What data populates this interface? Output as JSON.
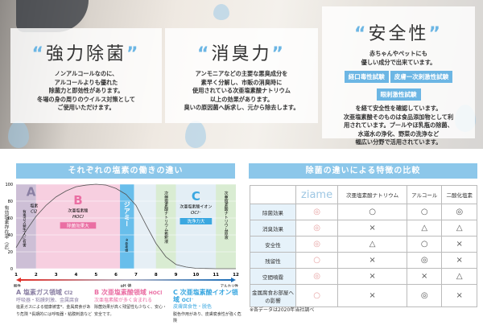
{
  "cards": [
    {
      "title": "強力除菌",
      "lines": [
        "ノンアルコールなのに、",
        "アルコールよりも優れた",
        "除菌力と即効性があります。",
        "冬場の身の周りのウイルス対策として",
        "ご使用いただけます。"
      ]
    },
    {
      "title": "消臭力",
      "lines": [
        "アンモニアなどの主要な悪臭成分を",
        "素早く分解し、市販の消臭時に",
        "使用されている次亜塩素酸ナトリウム",
        "以上の効果があります。",
        "臭いの原因菌へ訴求し、元から除去します。"
      ]
    },
    {
      "title": "安全性",
      "intro": [
        "赤ちゃんやペットにも",
        "優しい成分で出来ています。"
      ],
      "badges": [
        "経口毒性試験",
        "皮膚一次刺激性試験",
        "眼刺激性試験"
      ],
      "lines": [
        "を経て安全性を確認しています。",
        "次亜塩素酸そのものは食品添加物として利",
        "用されています。プールやほ乳瓶の除菌、",
        "水道水の浄化、野菜の洗浄など",
        "幅広い分野で活用されています。"
      ]
    }
  ],
  "quote_open": "“",
  "quote_close": "”",
  "chart_data": {
    "type": "line",
    "title": "それぞれの塩素の働きの違い",
    "ylabel": "有効塩素存在率（%）",
    "xlabel": "pH 値",
    "x_left_label": "酸性",
    "x_right_label": "アルカリ性",
    "xlim": [
      1,
      12
    ],
    "ylim": [
      0,
      100
    ],
    "xticks": [
      1,
      2,
      3,
      4,
      5,
      6,
      7,
      8,
      9,
      10,
      11,
      12
    ],
    "yticks": [
      0,
      20,
      40,
      60,
      80,
      100
    ],
    "x": [
      1,
      1.5,
      2,
      2.5,
      3,
      3.5,
      4,
      4.5,
      5,
      5.5,
      6,
      6.5,
      7,
      7.5,
      8,
      8.5,
      9,
      9.5,
      10,
      11,
      12
    ],
    "y": [
      25,
      45,
      62,
      75,
      85,
      92,
      97,
      99,
      100,
      99,
      95,
      88,
      75,
      52,
      30,
      14,
      5,
      2,
      0.5,
      0,
      0
    ],
    "regions": [
      {
        "label": "A",
        "name": "塩素",
        "formula": "Cl2",
        "note": "有毒ガス発生 人に有害",
        "from": 1,
        "to": 2,
        "color": "#cdbfd6"
      },
      {
        "label": "B",
        "name": "次亜塩素酸",
        "formula": "HOCl",
        "tag": "除菌効果大",
        "from": 2,
        "to": 6.2,
        "color": "#f7cfe0"
      },
      {
        "label": "",
        "name": "ジアミー",
        "note": "※参考値",
        "from": 6.2,
        "to": 6.9,
        "color": "#5ab8ea"
      },
      {
        "label": "",
        "name": "次亜塩素酸ナトリウム希釈液",
        "from": 8,
        "to": 9,
        "color": "#d9ecd2"
      },
      {
        "label": "C",
        "name": "次亜塩素酸イオン",
        "formula": "OCl⁻",
        "tag": "洗浄力大",
        "from": 9,
        "to": 11,
        "color": "#e3eef5"
      },
      {
        "label": "",
        "name": "次亜塩素酸ナトリウム原液",
        "from": 11,
        "to": 12,
        "color": "#d9ecd2"
      }
    ],
    "legend": [
      {
        "title": "A 塩素ガス領域",
        "formula": "Cl2",
        "sub": "呼吸器・粘膜刺激、金属腐食",
        "desc": "塩素ガスによる健康被害*、金属腐食があり危険 *長期的には呼吸器・粘膜刺激など",
        "color": "#8a7fa3"
      },
      {
        "title": "B 次亜塩素酸領域",
        "formula": "HOCl",
        "sub": "次亜塩素酸が多く含まれる",
        "desc": "除菌効果が高く残留性も少なく、安心・安全です。",
        "color": "#ea6ea3"
      },
      {
        "title": "C 次亜塩素酸イオン領域",
        "formula": "OCl⁻",
        "sub": "皮膚腐食性・脱色",
        "desc": "脱色作用があり、皮膚腐食性が強く危険",
        "color": "#3aa7e0"
      }
    ]
  },
  "comparison": {
    "title": "除菌の違いによる特徴の比較",
    "columns": [
      "ziame",
      "次亜塩素酸ナトリウム",
      "アルコール",
      "二酸化塩素"
    ],
    "rows": [
      {
        "label": "除菌効果",
        "marks": [
          "◎",
          "○",
          "○",
          "◎"
        ]
      },
      {
        "label": "消臭効果",
        "marks": [
          "◎",
          "×",
          "△",
          "△"
        ]
      },
      {
        "label": "安全性",
        "marks": [
          "◎",
          "△",
          "○",
          "×"
        ]
      },
      {
        "label": "残留性",
        "marks": [
          "○",
          "×",
          "◎",
          "×"
        ]
      },
      {
        "label": "空間噴霧",
        "marks": [
          "◎",
          "×",
          "×",
          "△"
        ]
      },
      {
        "label": "金属腐食お部屋への影響",
        "marks": [
          "○",
          "×",
          "◎",
          "×"
        ]
      }
    ],
    "footnote": "※各データは2020年当社調べ"
  }
}
